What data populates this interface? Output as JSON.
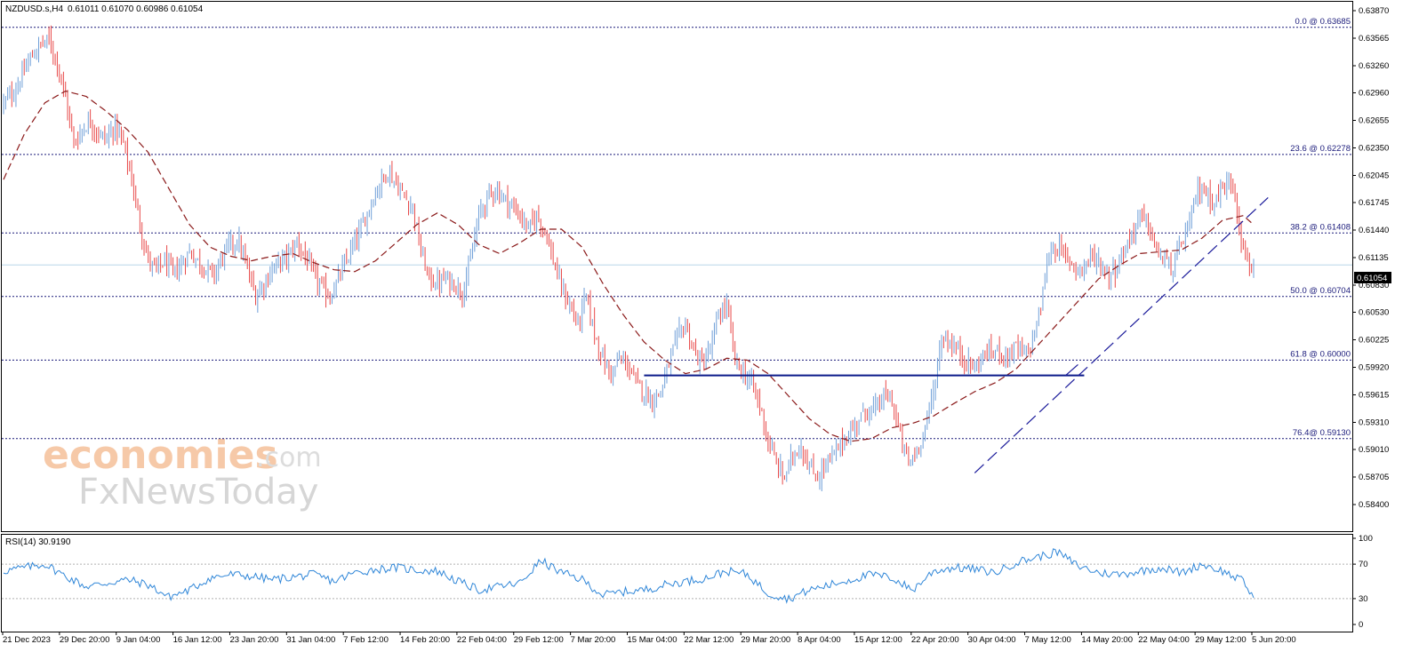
{
  "header": {
    "symbol": "NZDUSD.s,H4",
    "ohlc": "0.61011 0.61070 0.60986 0.61054"
  },
  "watermark": {
    "brand": "economies",
    "brand_suffix": ".com",
    "brand2": "FxNewsToday"
  },
  "rsi": {
    "label": "RSI(14) 30.9190",
    "levels": [
      70,
      30
    ],
    "ticks": [
      "100",
      "70",
      "30",
      "0"
    ]
  },
  "current_price": "0.61054",
  "colors": {
    "bull": "#6f9fd8",
    "bear": "#e84a4a",
    "ma": "#8b1a1a",
    "fib": "#1a1a7a",
    "trend": "#1a1a9a",
    "support": "#0a1a8a",
    "rsi": "#2f86d8",
    "price_line": "#b8d6e8"
  },
  "chart_data": {
    "type": "candlestick",
    "title": "NZDUSD.s,H4",
    "y_ticks": [
      "0.63870",
      "0.63565",
      "0.63260",
      "0.62960",
      "0.62655",
      "0.62350",
      "0.62045",
      "0.61745",
      "0.61440",
      "0.61135",
      "0.60830",
      "0.60530",
      "0.60225",
      "0.59920",
      "0.59615",
      "0.59310",
      "0.59010",
      "0.58705",
      "0.58400"
    ],
    "ylim": [
      0.584,
      0.6387
    ],
    "x_ticks": [
      "21 Dec 2023",
      "29 Dec 20:00",
      "9 Jan 04:00",
      "16 Jan 12:00",
      "23 Jan 20:00",
      "31 Jan 04:00",
      "7 Feb 12:00",
      "14 Feb 20:00",
      "22 Feb 04:00",
      "29 Feb 12:00",
      "7 Mar 20:00",
      "15 Mar 04:00",
      "22 Mar 12:00",
      "29 Mar 20:00",
      "8 Apr 04:00",
      "15 Apr 12:00",
      "22 Apr 20:00",
      "30 Apr 04:00",
      "7 May 12:00",
      "14 May 20:00",
      "22 May 04:00",
      "29 May 12:00",
      "5 Jun 20:00"
    ],
    "fibonacci": [
      {
        "label": "0.0 @ 0.63685",
        "price": 0.63685
      },
      {
        "label": "23.6 @ 0.62278",
        "price": 0.62278
      },
      {
        "label": "38.2 @ 0.61408",
        "price": 0.61408
      },
      {
        "label": "50.0 @ 0.60704",
        "price": 0.60704
      },
      {
        "label": "61.8 @ 0.60000",
        "price": 0.6
      },
      {
        "label": "76.4@ 0.59130",
        "price": 0.5913
      }
    ],
    "current_price": 0.61054,
    "price_path": [
      [
        0,
        0.6285
      ],
      [
        6,
        0.63
      ],
      [
        12,
        0.633
      ],
      [
        18,
        0.635
      ],
      [
        22,
        0.6355
      ],
      [
        26,
        0.633
      ],
      [
        30,
        0.629
      ],
      [
        34,
        0.624
      ],
      [
        38,
        0.6255
      ],
      [
        42,
        0.6265
      ],
      [
        46,
        0.625
      ],
      [
        50,
        0.6245
      ],
      [
        54,
        0.626
      ],
      [
        58,
        0.624
      ],
      [
        62,
        0.62
      ],
      [
        66,
        0.615
      ],
      [
        70,
        0.611
      ],
      [
        74,
        0.61
      ],
      [
        78,
        0.611
      ],
      [
        82,
        0.6095
      ],
      [
        86,
        0.6105
      ],
      [
        90,
        0.612
      ],
      [
        94,
        0.611
      ],
      [
        98,
        0.61
      ],
      [
        102,
        0.6095
      ],
      [
        106,
        0.6115
      ],
      [
        110,
        0.613
      ],
      [
        114,
        0.613
      ],
      [
        118,
        0.61
      ],
      [
        122,
        0.607
      ],
      [
        126,
        0.6085
      ],
      [
        130,
        0.61
      ],
      [
        134,
        0.611
      ],
      [
        138,
        0.6115
      ],
      [
        142,
        0.613
      ],
      [
        146,
        0.6115
      ],
      [
        150,
        0.6095
      ],
      [
        154,
        0.608
      ],
      [
        158,
        0.607
      ],
      [
        162,
        0.609
      ],
      [
        166,
        0.611
      ],
      [
        170,
        0.613
      ],
      [
        174,
        0.615
      ],
      [
        178,
        0.6175
      ],
      [
        182,
        0.6195
      ],
      [
        186,
        0.621
      ],
      [
        190,
        0.6195
      ],
      [
        194,
        0.618
      ],
      [
        198,
        0.617
      ],
      [
        202,
        0.612
      ],
      [
        206,
        0.609
      ],
      [
        210,
        0.6085
      ],
      [
        214,
        0.609
      ],
      [
        218,
        0.6085
      ],
      [
        222,
        0.6075
      ],
      [
        226,
        0.611
      ],
      [
        230,
        0.616
      ],
      [
        234,
        0.618
      ],
      [
        238,
        0.619
      ],
      [
        242,
        0.618
      ],
      [
        246,
        0.617
      ],
      [
        250,
        0.616
      ],
      [
        254,
        0.6145
      ],
      [
        258,
        0.616
      ],
      [
        262,
        0.6145
      ],
      [
        266,
        0.611
      ],
      [
        270,
        0.608
      ],
      [
        274,
        0.606
      ],
      [
        278,
        0.604
      ],
      [
        282,
        0.607
      ],
      [
        286,
        0.603
      ],
      [
        290,
        0.6
      ],
      [
        294,
        0.5985
      ],
      [
        298,
        0.6
      ],
      [
        302,
        0.5995
      ],
      [
        306,
        0.5975
      ],
      [
        310,
        0.5965
      ],
      [
        314,
        0.5955
      ],
      [
        318,
        0.5965
      ],
      [
        322,
        0.5995
      ],
      [
        326,
        0.6025
      ],
      [
        330,
        0.604
      ],
      [
        334,
        0.601
      ],
      [
        338,
        0.5995
      ],
      [
        342,
        0.601
      ],
      [
        346,
        0.605
      ],
      [
        350,
        0.606
      ],
      [
        354,
        0.6
      ],
      [
        358,
        0.5985
      ],
      [
        362,
        0.5975
      ],
      [
        366,
        0.595
      ],
      [
        370,
        0.591
      ],
      [
        374,
        0.5885
      ],
      [
        378,
        0.587
      ],
      [
        382,
        0.5895
      ],
      [
        386,
        0.5905
      ],
      [
        390,
        0.588
      ],
      [
        394,
        0.587
      ],
      [
        398,
        0.5885
      ],
      [
        402,
        0.5895
      ],
      [
        406,
        0.591
      ],
      [
        410,
        0.592
      ],
      [
        414,
        0.5935
      ],
      [
        418,
        0.5945
      ],
      [
        422,
        0.5945
      ],
      [
        426,
        0.596
      ],
      [
        430,
        0.5955
      ],
      [
        434,
        0.5915
      ],
      [
        438,
        0.5885
      ],
      [
        442,
        0.59
      ],
      [
        446,
        0.5925
      ],
      [
        450,
        0.5965
      ],
      [
        454,
        0.6025
      ],
      [
        458,
        0.602
      ],
      [
        462,
        0.601
      ],
      [
        466,
        0.6
      ],
      [
        470,
        0.599
      ],
      [
        474,
        0.6005
      ],
      [
        478,
        0.601
      ],
      [
        482,
        0.601
      ],
      [
        486,
        0.6005
      ],
      [
        490,
        0.6015
      ],
      [
        494,
        0.6005
      ],
      [
        498,
        0.602
      ],
      [
        502,
        0.606
      ],
      [
        506,
        0.612
      ],
      [
        510,
        0.6125
      ],
      [
        514,
        0.6115
      ],
      [
        518,
        0.6105
      ],
      [
        522,
        0.61
      ],
      [
        526,
        0.6115
      ],
      [
        530,
        0.611
      ],
      [
        534,
        0.6095
      ],
      [
        538,
        0.61
      ],
      [
        542,
        0.612
      ],
      [
        546,
        0.614
      ],
      [
        550,
        0.616
      ],
      [
        554,
        0.615
      ],
      [
        558,
        0.612
      ],
      [
        562,
        0.611
      ],
      [
        566,
        0.61
      ],
      [
        570,
        0.613
      ],
      [
        574,
        0.615
      ],
      [
        578,
        0.619
      ],
      [
        582,
        0.6185
      ],
      [
        586,
        0.6175
      ],
      [
        590,
        0.619
      ],
      [
        594,
        0.62
      ],
      [
        596,
        0.6185
      ],
      [
        600,
        0.612
      ],
      [
        604,
        0.6105
      ],
      [
        605,
        0.6105
      ]
    ],
    "moving_average_path": [
      [
        0,
        0.62
      ],
      [
        10,
        0.625
      ],
      [
        20,
        0.6285
      ],
      [
        30,
        0.6298
      ],
      [
        40,
        0.6292
      ],
      [
        50,
        0.6275
      ],
      [
        60,
        0.6255
      ],
      [
        70,
        0.623
      ],
      [
        80,
        0.619
      ],
      [
        90,
        0.615
      ],
      [
        100,
        0.6125
      ],
      [
        110,
        0.6115
      ],
      [
        120,
        0.611
      ],
      [
        130,
        0.6115
      ],
      [
        140,
        0.6118
      ],
      [
        150,
        0.6108
      ],
      [
        160,
        0.61
      ],
      [
        170,
        0.6098
      ],
      [
        180,
        0.611
      ],
      [
        190,
        0.613
      ],
      [
        200,
        0.615
      ],
      [
        210,
        0.6163
      ],
      [
        220,
        0.615
      ],
      [
        230,
        0.6128
      ],
      [
        240,
        0.6118
      ],
      [
        250,
        0.613
      ],
      [
        260,
        0.6145
      ],
      [
        270,
        0.6145
      ],
      [
        280,
        0.6125
      ],
      [
        290,
        0.6085
      ],
      [
        300,
        0.605
      ],
      [
        310,
        0.602
      ],
      [
        320,
        0.6
      ],
      [
        330,
        0.5985
      ],
      [
        340,
        0.599
      ],
      [
        350,
        0.6002
      ],
      [
        360,
        0.6
      ],
      [
        370,
        0.5985
      ],
      [
        380,
        0.596
      ],
      [
        390,
        0.5935
      ],
      [
        400,
        0.5918
      ],
      [
        410,
        0.591
      ],
      [
        420,
        0.5913
      ],
      [
        430,
        0.5925
      ],
      [
        440,
        0.593
      ],
      [
        450,
        0.5938
      ],
      [
        460,
        0.5952
      ],
      [
        470,
        0.5965
      ],
      [
        480,
        0.5975
      ],
      [
        490,
        0.599
      ],
      [
        500,
        0.6015
      ],
      [
        510,
        0.604
      ],
      [
        520,
        0.6065
      ],
      [
        530,
        0.609
      ],
      [
        540,
        0.6105
      ],
      [
        550,
        0.6118
      ],
      [
        560,
        0.612
      ],
      [
        570,
        0.6122
      ],
      [
        580,
        0.6135
      ],
      [
        590,
        0.6155
      ],
      [
        600,
        0.616
      ],
      [
        605,
        0.615
      ]
    ],
    "rsi_path": [
      [
        0,
        62
      ],
      [
        10,
        66
      ],
      [
        20,
        70
      ],
      [
        30,
        56
      ],
      [
        40,
        44
      ],
      [
        50,
        48
      ],
      [
        60,
        52
      ],
      [
        70,
        46
      ],
      [
        80,
        32
      ],
      [
        90,
        40
      ],
      [
        100,
        54
      ],
      [
        110,
        58
      ],
      [
        120,
        56
      ],
      [
        130,
        52
      ],
      [
        140,
        55
      ],
      [
        150,
        58
      ],
      [
        160,
        50
      ],
      [
        170,
        60
      ],
      [
        180,
        64
      ],
      [
        190,
        66
      ],
      [
        200,
        63
      ],
      [
        210,
        62
      ],
      [
        220,
        50
      ],
      [
        230,
        40
      ],
      [
        240,
        44
      ],
      [
        250,
        48
      ],
      [
        260,
        74
      ],
      [
        270,
        60
      ],
      [
        280,
        52
      ],
      [
        290,
        34
      ],
      [
        300,
        38
      ],
      [
        310,
        40
      ],
      [
        320,
        46
      ],
      [
        330,
        50
      ],
      [
        340,
        54
      ],
      [
        350,
        62
      ],
      [
        360,
        58
      ],
      [
        370,
        36
      ],
      [
        380,
        30
      ],
      [
        390,
        40
      ],
      [
        400,
        46
      ],
      [
        410,
        52
      ],
      [
        420,
        58
      ],
      [
        430,
        54
      ],
      [
        440,
        40
      ],
      [
        450,
        62
      ],
      [
        460,
        66
      ],
      [
        470,
        64
      ],
      [
        480,
        60
      ],
      [
        490,
        72
      ],
      [
        500,
        78
      ],
      [
        510,
        84
      ],
      [
        520,
        68
      ],
      [
        530,
        60
      ],
      [
        540,
        58
      ],
      [
        550,
        62
      ],
      [
        560,
        66
      ],
      [
        570,
        60
      ],
      [
        580,
        70
      ],
      [
        590,
        62
      ],
      [
        600,
        50
      ],
      [
        605,
        31
      ]
    ]
  }
}
